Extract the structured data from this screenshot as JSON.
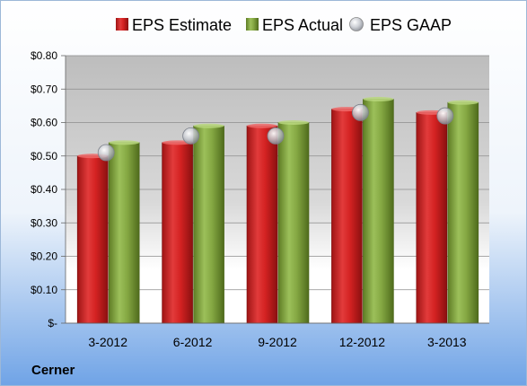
{
  "company": "Cerner",
  "colors": {
    "estimate": "#cc1f1f",
    "actual": "#7ea03a",
    "gaap": "#b8bcc4"
  },
  "chart_data": {
    "type": "bar",
    "title": "",
    "xlabel": "",
    "ylabel": "",
    "categories": [
      "3-2012",
      "6-2012",
      "9-2012",
      "12-2012",
      "3-2013"
    ],
    "series": [
      {
        "name": "EPS Estimate",
        "kind": "bar",
        "values": [
          0.5,
          0.54,
          0.59,
          0.64,
          0.63
        ]
      },
      {
        "name": "EPS Actual",
        "kind": "bar",
        "values": [
          0.54,
          0.59,
          0.6,
          0.67,
          0.66
        ]
      },
      {
        "name": "EPS GAAP",
        "kind": "marker",
        "values": [
          0.51,
          0.56,
          0.56,
          0.63,
          0.62
        ]
      }
    ],
    "ylim": [
      0,
      0.8
    ],
    "yticks": [
      0,
      0.1,
      0.2,
      0.3,
      0.4,
      0.5,
      0.6,
      0.7,
      0.8
    ],
    "ytick_labels": [
      "$-",
      "$0.10",
      "$0.20",
      "$0.30",
      "$0.40",
      "$0.50",
      "$0.60",
      "$0.70",
      "$0.80"
    ],
    "grid": true,
    "legend": "top"
  }
}
